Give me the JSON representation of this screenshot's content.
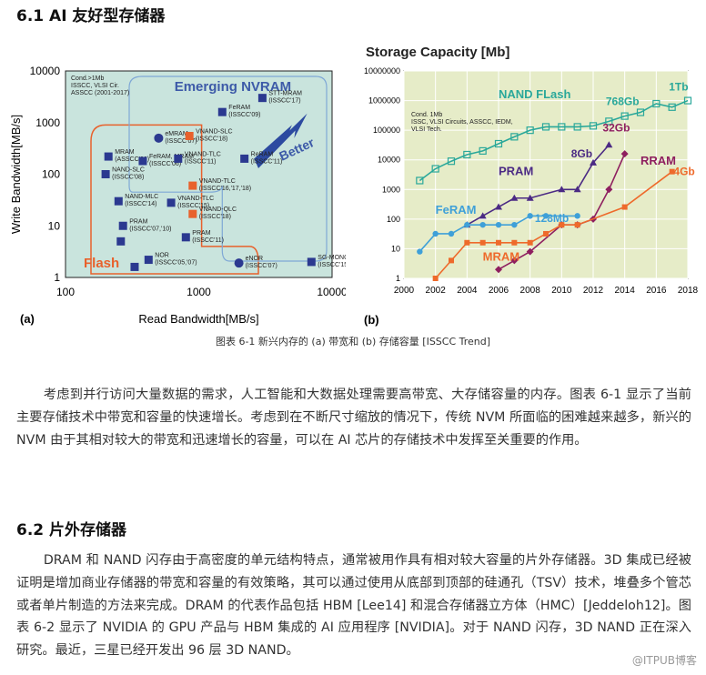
{
  "heading1": "6.1 AI 友好型存储器",
  "caption": "图表 6-1 新兴内存的 (a) 带宽和 (b) 存储容量 [ISSCC Trend]",
  "para1": "考虑到并行访问大量数据的需求，人工智能和大数据处理需要高带宽、大存储容量的内存。图表 6-1 显示了当前主要存储技术中带宽和容量的快速增长。考虑到在不断尺寸缩放的情况下，传统 NVM 所面临的困难越来越多，新兴的 NVM 由于其相对较大的带宽和迅速增长的容量，可以在 AI 芯片的存储技术中发挥至关重要的作用。",
  "heading2": "6.2 片外存储器",
  "para2": "DRAM 和 NAND 闪存由于高密度的单元结构特点，通常被用作具有相对较大容量的片外存储器。3D 集成已经被证明是增加商业存储器的带宽和容量的有效策略，其可以通过使用从底部到顶部的硅通孔（TSV）技术，堆叠多个管芯或者单片制造的方法来完成。DRAM 的代表作品包括 HBM [Lee14] 和混合存储器立方体（HMC）[Jeddeloh12]。图表 6-2 显示了 NVIDIA 的 GPU 产品与 HBM 集成的 AI 应用程序 [NVIDIA]。对于 NAND 闪存，3D NAND 正在深入研究。最近，三星已经开发出 96 层 3D NAND。",
  "watermark": "@ITPUB博客",
  "colors": {
    "square": "#2b3990",
    "nvram": "#3d5aa8",
    "flash": "#e8612c",
    "nand": "#2aa89a",
    "pram": "#4b2a84",
    "feram": "#3fa0d8",
    "rram": "#8e1f5f",
    "orange": "#ee6a2b"
  },
  "chart_data": [
    {
      "type": "scatter",
      "panel_label": "(a)",
      "xlabel": "Read Bandwidth[MB/s]",
      "ylabel": "Write Bandwidth[MB/s]",
      "xscale": "log",
      "yscale": "log",
      "xlim": [
        100,
        10000
      ],
      "ylim": [
        1,
        10000
      ],
      "x_ticks": [
        "100",
        "1000",
        "10000"
      ],
      "y_ticks": [
        "1",
        "10",
        "100",
        "1000",
        "10000"
      ],
      "note": "Cond.>1Mb\nISSCC, VLSI Cir.\nASSCC (2001-2017)",
      "region_labels": [
        "Emerging NVRAM",
        "Flash",
        "Better"
      ],
      "points": [
        {
          "label": "FeRAM\n(ISSCC'09)",
          "x": 1500,
          "y": 1600,
          "kind": "square"
        },
        {
          "label": "STT-MRAM\n(ISSCC'17)",
          "x": 3000,
          "y": 3000,
          "kind": "square"
        },
        {
          "label": "eMRAM\n(ISSCC'07)",
          "x": 500,
          "y": 500,
          "kind": "circle"
        },
        {
          "label": "MRAM\n(ASSCC'06)",
          "x": 210,
          "y": 220,
          "kind": "square"
        },
        {
          "label": "FeRAM, MRAM\n(ISSCC'06)",
          "x": 380,
          "y": 180,
          "kind": "square"
        },
        {
          "label": "VNAND-SLC\n(ISSCC'18)",
          "x": 850,
          "y": 550,
          "kind": "flash"
        },
        {
          "label": "VNAND-TLC\n(ISSCC'11)",
          "x": 700,
          "y": 200,
          "kind": "square"
        },
        {
          "label": "ReRAM\n(ISSCC'11)",
          "x": 2200,
          "y": 200,
          "kind": "square"
        },
        {
          "label": "NAND-SLC\n(ISSCC'08)",
          "x": 200,
          "y": 100,
          "kind": "square"
        },
        {
          "label": "NAND-MLC\n(ISSCC'14)",
          "x": 250,
          "y": 30,
          "kind": "square"
        },
        {
          "label": "VNAND-TLC\n(ISSCC'16,'17,'18)",
          "x": 900,
          "y": 60,
          "kind": "flash"
        },
        {
          "label": "VNAND-TLC\n(ISSCC'15)",
          "x": 620,
          "y": 28,
          "kind": "square"
        },
        {
          "label": "VNAND-QLC\n(ISSCC'18)",
          "x": 900,
          "y": 17,
          "kind": "flash"
        },
        {
          "label": "PRAM\n(ISSCC'07,'10)",
          "x": 270,
          "y": 10,
          "kind": "square"
        },
        {
          "label": "PRAM\n(ISSCC'11)",
          "x": 800,
          "y": 6,
          "kind": "square"
        },
        {
          "label": "",
          "x": 260,
          "y": 5,
          "kind": "square"
        },
        {
          "label": "NOR\n(ISSCC'05,'07)",
          "x": 420,
          "y": 2.2,
          "kind": "square"
        },
        {
          "label": "",
          "x": 330,
          "y": 1.6,
          "kind": "square"
        },
        {
          "label": "eNOR\n(ISSCC'07)",
          "x": 2000,
          "y": 1.9,
          "kind": "circle"
        },
        {
          "label": "SG-MONOS\n(ISSCC'15)",
          "x": 7000,
          "y": 2,
          "kind": "square"
        }
      ]
    },
    {
      "type": "line",
      "panel_label": "(b)",
      "title": "Storage Capacity [Mb]",
      "yscale": "log",
      "xlim": [
        2000,
        2018
      ],
      "ylim": [
        1,
        10000000
      ],
      "x_ticks": [
        "2000",
        "2002",
        "2004",
        "2006",
        "2008",
        "2010",
        "2012",
        "2014",
        "2016",
        "2018"
      ],
      "y_ticks": [
        "1",
        "10",
        "100",
        "1000",
        "10000",
        "100000",
        "1000000",
        "10000000"
      ],
      "note": "Cond. 1Mb\nISSC, VLSI Circuits, ASSCC, IEDM,\nVLSI Tech.",
      "annotations": [
        "768Gb",
        "1Tb",
        "32Gb",
        "8Gb",
        "128Mb",
        "4Gb"
      ],
      "series": [
        {
          "name": "NAND FLash",
          "color": "nand",
          "marker": "hollow-square",
          "x": [
            2001,
            2002,
            2003,
            2004,
            2005,
            2006,
            2007,
            2008,
            2009,
            2010,
            2011,
            2012,
            2013,
            2014,
            2015,
            2016,
            2017,
            2018
          ],
          "y": [
            2000,
            5000,
            9000,
            15000,
            20000,
            35000,
            60000,
            100000,
            130000,
            130000,
            130000,
            140000,
            200000,
            300000,
            400000,
            786000,
            600000,
            1000000
          ]
        },
        {
          "name": "PRAM",
          "color": "pram",
          "marker": "triangle",
          "x": [
            2004,
            2005,
            2006,
            2007,
            2008,
            2010,
            2011,
            2012,
            2013
          ],
          "y": [
            64,
            128,
            256,
            512,
            512,
            1000,
            1000,
            8000,
            32000
          ]
        },
        {
          "name": "FeRAM",
          "color": "feram",
          "marker": "circle",
          "x": [
            2001,
            2002,
            2003,
            2004,
            2005,
            2006,
            2007,
            2008,
            2009,
            2011
          ],
          "y": [
            8,
            32,
            32,
            64,
            64,
            64,
            64,
            128,
            128,
            128
          ]
        },
        {
          "name": "RRAM",
          "color": "rram",
          "marker": "diamond",
          "x": [
            2006,
            2007,
            2008,
            2010,
            2011,
            2012,
            2013,
            2014
          ],
          "y": [
            2,
            4,
            8,
            64,
            64,
            100,
            1000,
            16000
          ]
        },
        {
          "name": "MRAM",
          "color": "orange",
          "marker": "square",
          "x": [
            2002,
            2003,
            2004,
            2005,
            2006,
            2007,
            2008,
            2009,
            2010,
            2011,
            2014,
            2017
          ],
          "y": [
            1,
            4,
            16,
            16,
            16,
            16,
            16,
            32,
            64,
            64,
            256,
            4000
          ]
        }
      ]
    }
  ]
}
